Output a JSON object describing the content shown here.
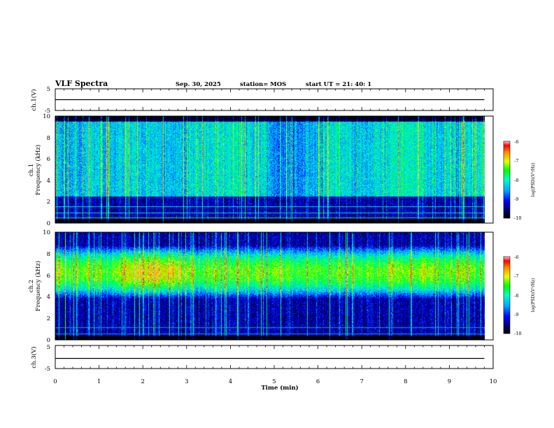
{
  "header": {
    "title": "VLF Spectra",
    "date": "Sep. 30, 2025",
    "station": "station= MOS",
    "start": "start  UT  =   21: 40: 1"
  },
  "colorbar": {
    "ticks": [
      "-6",
      "-7",
      "-8",
      "-9",
      "-10"
    ],
    "label": "log(PSD)(V²/Hz)"
  },
  "chart_data": [
    {
      "type": "line",
      "panel": "ch.1(V)",
      "ylabel": "ch.1(V)",
      "ylim": [
        -5,
        5
      ],
      "yticks": [
        "5",
        "-5"
      ],
      "xlim": [
        0,
        10
      ],
      "baseline": 0,
      "description_values": {
        "x_range_min": [
          0,
          9.8
        ],
        "y_level": 0
      }
    },
    {
      "type": "heatmap",
      "panel": "ch.1 spectrogram",
      "ylabel": "ch.1 Frequency (kHz)",
      "ylabel_line1": "ch.1",
      "ylabel_line2": "Frequency (kHz)",
      "ylim": [
        0,
        10
      ],
      "yticks": [
        "10",
        "8",
        "6",
        "4",
        "2",
        "0"
      ],
      "xlim": [
        0,
        10
      ],
      "data_end_min": 9.8,
      "zlim": [
        -10,
        -6
      ],
      "background_level": -9,
      "band_low_khz": 2.5,
      "band_high_khz": 9.5,
      "band_peak_level": -7.5,
      "impulsive_streaks": true,
      "lines_khz": [
        0.5,
        1.0,
        1.6
      ],
      "line_level": -8
    },
    {
      "type": "heatmap",
      "panel": "ch.2 spectrogram",
      "ylabel": "ch.2 Frequency (kHz)",
      "ylabel_line1": "ch.2",
      "ylabel_line2": "Frequency (kHz)",
      "ylim": [
        0,
        10
      ],
      "yticks": [
        "10",
        "8",
        "6",
        "4",
        "2",
        "0"
      ],
      "xlim": [
        0,
        10
      ],
      "data_end_min": 9.8,
      "zlim": [
        -10,
        -6
      ],
      "background_level": -9.2,
      "band_low_khz": 3.5,
      "band_center_khz": 6.3,
      "band_high_khz": 8.5,
      "band_peak_level": -7.0,
      "impulsive_streaks": true,
      "lines_khz": [
        0.6,
        1.2
      ],
      "line_level": -8.5
    },
    {
      "type": "line",
      "panel": "ch.3(V)",
      "ylabel": "ch.3(V)",
      "ylim": [
        -5,
        5
      ],
      "yticks": [
        "5",
        "-5"
      ],
      "xlim": [
        0,
        10
      ],
      "baseline": 0
    }
  ],
  "xaxis": {
    "label": "Time  (min)",
    "ticks": [
      "0",
      "1",
      "2",
      "3",
      "4",
      "5",
      "6",
      "7",
      "8",
      "9",
      "10"
    ]
  }
}
